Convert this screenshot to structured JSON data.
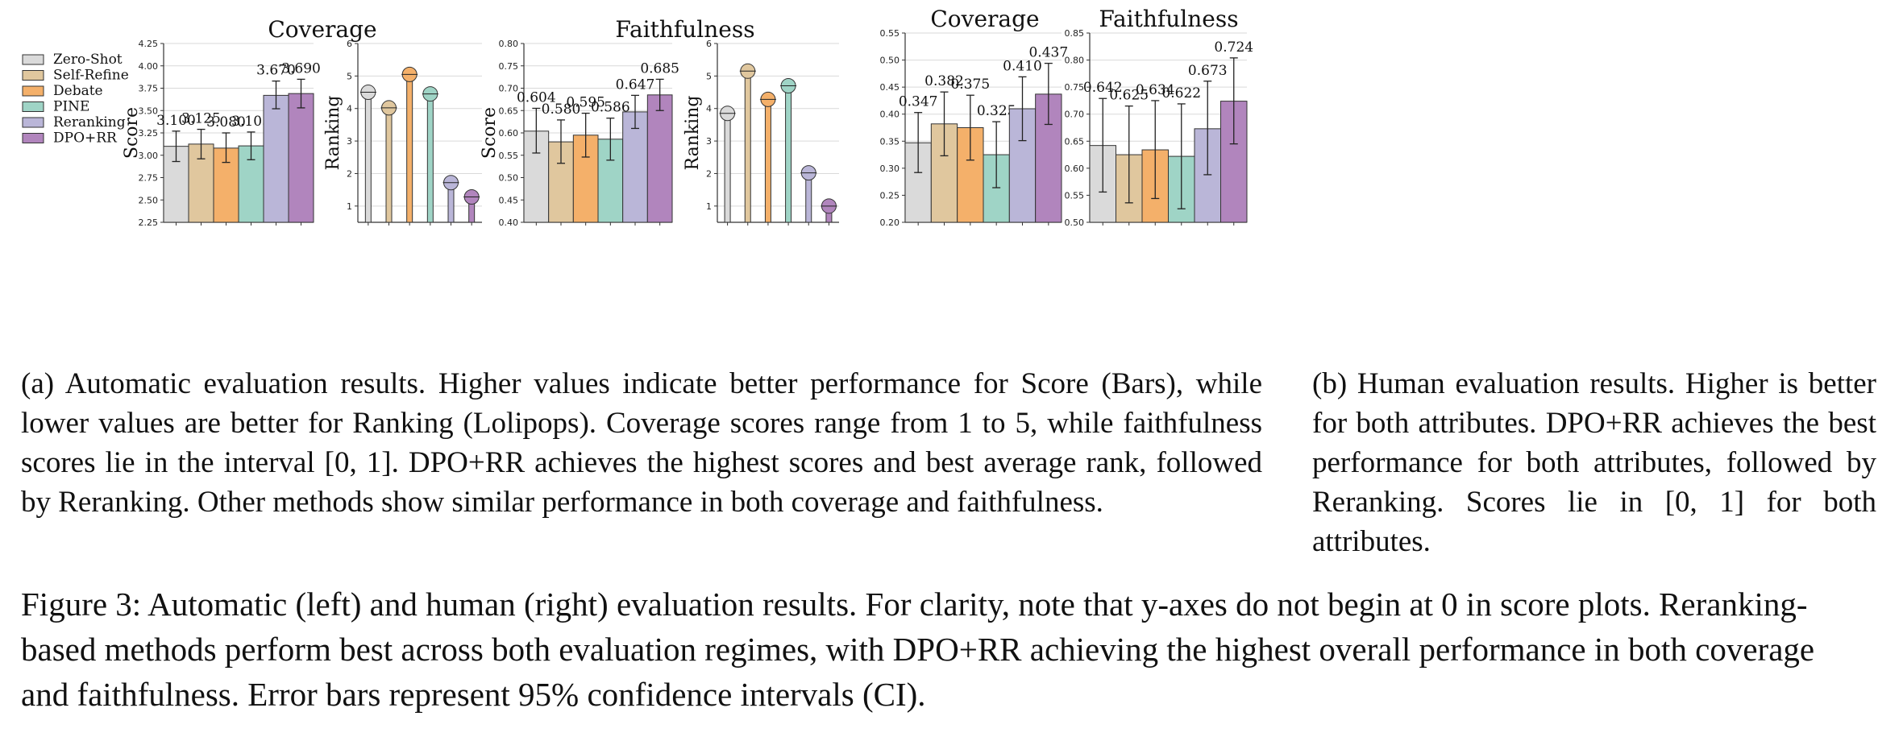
{
  "colors": {
    "Zero-Shot": "#dadada",
    "Self-Refine": "#e0c79e",
    "Debate": "#f4b06a",
    "PINE": "#9fd4c6",
    "Reranking": "#bab6d8",
    "DPO+RR": "#b185bd"
  },
  "legend": [
    "Zero-Shot",
    "Self-Refine",
    "Debate",
    "PINE",
    "Reranking",
    "DPO+RR"
  ],
  "chart_data": [
    {
      "type": "bar",
      "panel": "(a) Coverage score",
      "title": "Coverage",
      "ylabel": "Score",
      "ylim": [
        2.25,
        4.25
      ],
      "yticks": [
        "2.25",
        "2.50",
        "2.75",
        "3.00",
        "3.25",
        "3.50",
        "3.75",
        "4.00",
        "4.25"
      ],
      "categories": [
        "Zero-Shot",
        "Self-Refine",
        "Debate",
        "PINE",
        "Reranking",
        "DPO+RR"
      ],
      "values": [
        3.1,
        3.125,
        3.08,
        3.105,
        3.67,
        3.69
      ],
      "error": [
        [
          2.93,
          3.27
        ],
        [
          2.96,
          3.29
        ],
        [
          2.92,
          3.25
        ],
        [
          2.95,
          3.26
        ],
        [
          3.52,
          3.83
        ],
        [
          3.53,
          3.85
        ]
      ],
      "labels": [
        "3.100",
        "3.125",
        "3.080",
        "3.105",
        "3.670",
        "3.690"
      ]
    },
    {
      "type": "lollipop",
      "panel": "(a) Coverage ranking",
      "title": "",
      "ylabel": "Ranking",
      "ylim": [
        0.5,
        6
      ],
      "yticks": [
        "1",
        "2",
        "3",
        "4",
        "5",
        "6"
      ],
      "categories": [
        "Zero-Shot",
        "Self-Refine",
        "Debate",
        "PINE",
        "Reranking",
        "DPO+RR"
      ],
      "values": [
        4.5,
        4.02,
        5.05,
        4.45,
        1.72,
        1.28
      ]
    },
    {
      "type": "bar",
      "panel": "(a) Faithfulness score",
      "title": "Faithfulness",
      "ylabel": "Score",
      "ylim": [
        0.4,
        0.8
      ],
      "yticks": [
        "0.40",
        "0.45",
        "0.50",
        "0.55",
        "0.60",
        "0.65",
        "0.70",
        "0.75",
        "0.80"
      ],
      "categories": [
        "Zero-Shot",
        "Self-Refine",
        "Debate",
        "PINE",
        "Reranking",
        "DPO+RR"
      ],
      "values": [
        0.604,
        0.58,
        0.595,
        0.586,
        0.647,
        0.685
      ],
      "error": [
        [
          0.555,
          0.655
        ],
        [
          0.532,
          0.629
        ],
        [
          0.546,
          0.644
        ],
        [
          0.539,
          0.633
        ],
        [
          0.61,
          0.684
        ],
        [
          0.65,
          0.72
        ]
      ],
      "labels": [
        "0.604",
        "0.580",
        "0.595",
        "0.586",
        "0.647",
        "0.685"
      ]
    },
    {
      "type": "lollipop",
      "panel": "(a) Faithfulness ranking",
      "title": "",
      "ylabel": "Ranking",
      "ylim": [
        0.5,
        6
      ],
      "yticks": [
        "1",
        "2",
        "3",
        "4",
        "5",
        "6"
      ],
      "categories": [
        "Zero-Shot",
        "Self-Refine",
        "Debate",
        "PINE",
        "Reranking",
        "DPO+RR"
      ],
      "values": [
        3.85,
        5.15,
        4.28,
        4.7,
        2.02,
        1.0
      ]
    },
    {
      "type": "bar",
      "panel": "(b) Human coverage",
      "title": "Coverage",
      "ylabel": "",
      "ylim": [
        0.2,
        0.55
      ],
      "yticks": [
        "0.20",
        "0.25",
        "0.30",
        "0.35",
        "0.40",
        "0.45",
        "0.50",
        "0.55"
      ],
      "categories": [
        "Zero-Shot",
        "Self-Refine",
        "Debate",
        "PINE",
        "Reranking",
        "DPO+RR"
      ],
      "values": [
        0.347,
        0.382,
        0.375,
        0.325,
        0.41,
        0.437
      ],
      "error": [
        [
          0.292,
          0.403
        ],
        [
          0.323,
          0.441
        ],
        [
          0.315,
          0.435
        ],
        [
          0.264,
          0.386
        ],
        [
          0.351,
          0.469
        ],
        [
          0.381,
          0.494
        ]
      ],
      "labels": [
        "0.347",
        "0.382",
        "0.375",
        "0.325",
        "0.410",
        "0.437"
      ]
    },
    {
      "type": "bar",
      "panel": "(b) Human faithfulness",
      "title": "Faithfulness",
      "ylabel": "",
      "ylim": [
        0.5,
        0.85
      ],
      "yticks": [
        "0.50",
        "0.55",
        "0.60",
        "0.65",
        "0.70",
        "0.75",
        "0.80",
        "0.85"
      ],
      "categories": [
        "Zero-Shot",
        "Self-Refine",
        "Debate",
        "PINE",
        "Reranking",
        "DPO+RR"
      ],
      "values": [
        0.642,
        0.625,
        0.634,
        0.622,
        0.673,
        0.724
      ],
      "error": [
        [
          0.556,
          0.729
        ],
        [
          0.536,
          0.715
        ],
        [
          0.544,
          0.725
        ],
        [
          0.525,
          0.719
        ],
        [
          0.588,
          0.761
        ],
        [
          0.645,
          0.804
        ]
      ],
      "labels": [
        "0.642",
        "0.625",
        "0.634",
        "0.622",
        "0.673",
        "0.724"
      ]
    }
  ],
  "captions": {
    "a": "(a) Automatic evaluation results. Higher values indicate better performance for Score (Bars), while lower values are better for Ranking (Lolipops). Coverage scores range from 1 to 5, while faithfulness scores lie in the interval [0, 1]. DPO+RR achieves the highest scores and best average rank, followed by Reranking. Other methods show similar performance in both coverage and faithfulness.",
    "b": "(b) Human evaluation results. Higher is better for both attributes. DPO+RR achieves the best performance for both attributes, followed by Reranking. Scores lie in [0, 1] for both attributes.",
    "figure": "Figure 3: Automatic (left) and human (right) evaluation results. For clarity, note that y-axes do not begin at 0 in score plots. Reranking-based methods perform best across both evaluation regimes, with DPO+RR achieving the highest overall performance in both coverage and faithfulness. Error bars represent 95% confidence intervals (CI)."
  }
}
